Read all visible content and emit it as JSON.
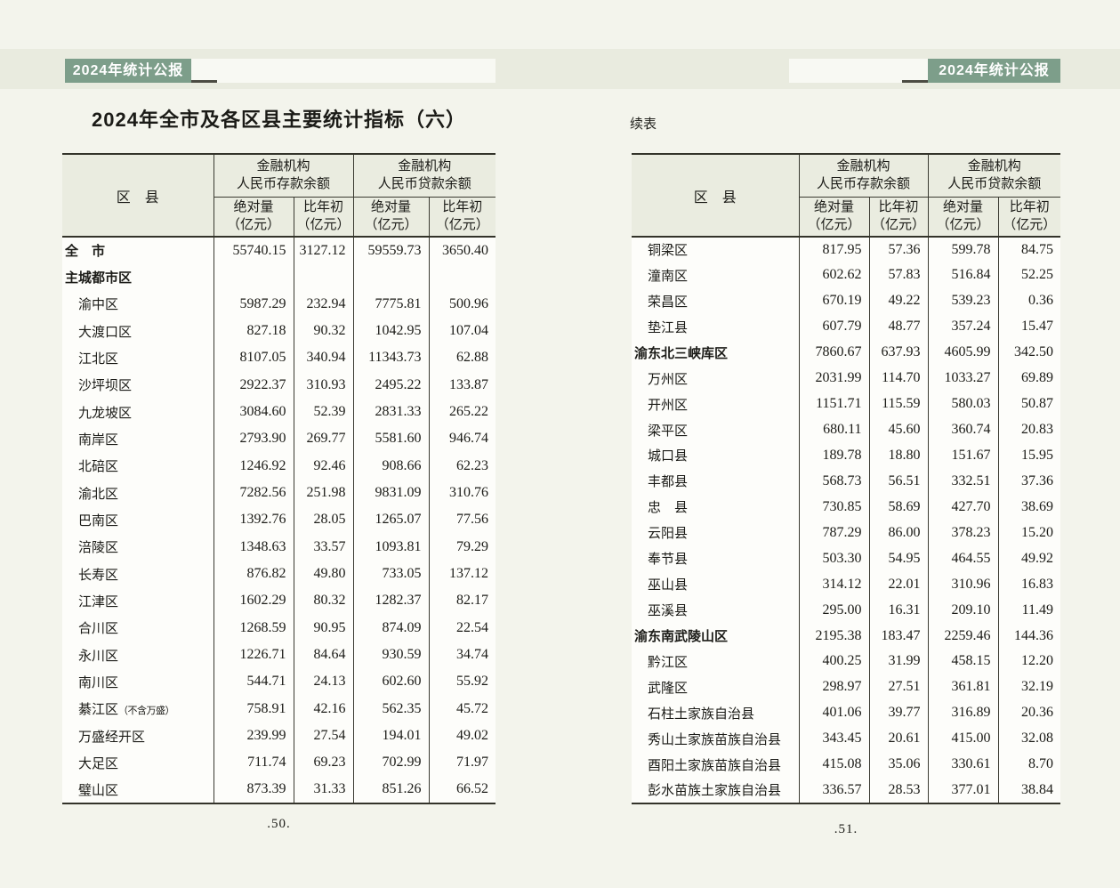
{
  "colors": {
    "badge_green": "#7d9e8a",
    "band_tint": "#e9ebdf",
    "table_header_tint": "#eaece0"
  },
  "left_page": {
    "badge": "2024年统计公报",
    "title": "2024年全市及各区县主要统计指标（六）",
    "page_number": ".50.",
    "table": {
      "header": {
        "region_col": "区　县",
        "deposit_group": "金融机构\n人民币存款余额",
        "loan_group": "金融机构\n人民币贷款余额",
        "sub_abs": "绝对量\n（亿元）",
        "sub_chg": "比年初\n（亿元）"
      },
      "rows": [
        {
          "name": "全　市",
          "bold": true,
          "indent": false,
          "values": [
            "55740.15",
            "3127.12",
            "59559.73",
            "3650.40"
          ]
        },
        {
          "name": "主城都市区",
          "bold": true,
          "indent": false,
          "values": [
            "",
            "",
            "",
            ""
          ]
        },
        {
          "name": "渝中区",
          "indent": true,
          "values": [
            "5987.29",
            "232.94",
            "7775.81",
            "500.96"
          ]
        },
        {
          "name": "大渡口区",
          "indent": true,
          "values": [
            "827.18",
            "90.32",
            "1042.95",
            "107.04"
          ]
        },
        {
          "name": "江北区",
          "indent": true,
          "values": [
            "8107.05",
            "340.94",
            "11343.73",
            "62.88"
          ]
        },
        {
          "name": "沙坪坝区",
          "indent": true,
          "values": [
            "2922.37",
            "310.93",
            "2495.22",
            "133.87"
          ]
        },
        {
          "name": "九龙坡区",
          "indent": true,
          "values": [
            "3084.60",
            "52.39",
            "2831.33",
            "265.22"
          ]
        },
        {
          "name": "南岸区",
          "indent": true,
          "values": [
            "2793.90",
            "269.77",
            "5581.60",
            "946.74"
          ]
        },
        {
          "name": "北碚区",
          "indent": true,
          "values": [
            "1246.92",
            "92.46",
            "908.66",
            "62.23"
          ]
        },
        {
          "name": "渝北区",
          "indent": true,
          "values": [
            "7282.56",
            "251.98",
            "9831.09",
            "310.76"
          ]
        },
        {
          "name": "巴南区",
          "indent": true,
          "values": [
            "1392.76",
            "28.05",
            "1265.07",
            "77.56"
          ]
        },
        {
          "name": "涪陵区",
          "indent": true,
          "values": [
            "1348.63",
            "33.57",
            "1093.81",
            "79.29"
          ]
        },
        {
          "name": "长寿区",
          "indent": true,
          "values": [
            "876.82",
            "49.80",
            "733.05",
            "137.12"
          ]
        },
        {
          "name": "江津区",
          "indent": true,
          "values": [
            "1602.29",
            "80.32",
            "1282.37",
            "82.17"
          ]
        },
        {
          "name": "合川区",
          "indent": true,
          "values": [
            "1268.59",
            "90.95",
            "874.09",
            "22.54"
          ]
        },
        {
          "name": "永川区",
          "indent": true,
          "values": [
            "1226.71",
            "84.64",
            "930.59",
            "34.74"
          ]
        },
        {
          "name": "南川区",
          "indent": true,
          "values": [
            "544.71",
            "24.13",
            "602.60",
            "55.92"
          ]
        },
        {
          "name": "綦江区",
          "note": "（不含万盛）",
          "indent": true,
          "values": [
            "758.91",
            "42.16",
            "562.35",
            "45.72"
          ]
        },
        {
          "name": "万盛经开区",
          "indent": true,
          "values": [
            "239.99",
            "27.54",
            "194.01",
            "49.02"
          ]
        },
        {
          "name": "大足区",
          "indent": true,
          "values": [
            "711.74",
            "69.23",
            "702.99",
            "71.97"
          ]
        },
        {
          "name": "璧山区",
          "indent": true,
          "values": [
            "873.39",
            "31.33",
            "851.26",
            "66.52"
          ]
        }
      ]
    }
  },
  "right_page": {
    "badge": "2024年统计公报",
    "continued_label": "续表",
    "page_number": ".51.",
    "table": {
      "header": {
        "region_col": "区　县",
        "deposit_group": "金融机构\n人民币存款余额",
        "loan_group": "金融机构\n人民币贷款余额",
        "sub_abs": "绝对量\n（亿元）",
        "sub_chg": "比年初\n（亿元）"
      },
      "rows": [
        {
          "name": "铜梁区",
          "indent": true,
          "values": [
            "817.95",
            "57.36",
            "599.78",
            "84.75"
          ]
        },
        {
          "name": "潼南区",
          "indent": true,
          "values": [
            "602.62",
            "57.83",
            "516.84",
            "52.25"
          ]
        },
        {
          "name": "荣昌区",
          "indent": true,
          "values": [
            "670.19",
            "49.22",
            "539.23",
            "0.36"
          ]
        },
        {
          "name": "垫江县",
          "indent": true,
          "values": [
            "607.79",
            "48.77",
            "357.24",
            "15.47"
          ]
        },
        {
          "name": "渝东北三峡库区",
          "bold": true,
          "indent": false,
          "values": [
            "7860.67",
            "637.93",
            "4605.99",
            "342.50"
          ]
        },
        {
          "name": "万州区",
          "indent": true,
          "values": [
            "2031.99",
            "114.70",
            "1033.27",
            "69.89"
          ]
        },
        {
          "name": "开州区",
          "indent": true,
          "values": [
            "1151.71",
            "115.59",
            "580.03",
            "50.87"
          ]
        },
        {
          "name": "梁平区",
          "indent": true,
          "values": [
            "680.11",
            "45.60",
            "360.74",
            "20.83"
          ]
        },
        {
          "name": "城口县",
          "indent": true,
          "values": [
            "189.78",
            "18.80",
            "151.67",
            "15.95"
          ]
        },
        {
          "name": "丰都县",
          "indent": true,
          "values": [
            "568.73",
            "56.51",
            "332.51",
            "37.36"
          ]
        },
        {
          "name": "忠　县",
          "indent": true,
          "values": [
            "730.85",
            "58.69",
            "427.70",
            "38.69"
          ]
        },
        {
          "name": "云阳县",
          "indent": true,
          "values": [
            "787.29",
            "86.00",
            "378.23",
            "15.20"
          ]
        },
        {
          "name": "奉节县",
          "indent": true,
          "values": [
            "503.30",
            "54.95",
            "464.55",
            "49.92"
          ]
        },
        {
          "name": "巫山县",
          "indent": true,
          "values": [
            "314.12",
            "22.01",
            "310.96",
            "16.83"
          ]
        },
        {
          "name": "巫溪县",
          "indent": true,
          "values": [
            "295.00",
            "16.31",
            "209.10",
            "11.49"
          ]
        },
        {
          "name": "渝东南武陵山区",
          "bold": true,
          "indent": false,
          "values": [
            "2195.38",
            "183.47",
            "2259.46",
            "144.36"
          ]
        },
        {
          "name": "黔江区",
          "indent": true,
          "values": [
            "400.25",
            "31.99",
            "458.15",
            "12.20"
          ]
        },
        {
          "name": "武隆区",
          "indent": true,
          "values": [
            "298.97",
            "27.51",
            "361.81",
            "32.19"
          ]
        },
        {
          "name": "石柱土家族自治县",
          "indent": true,
          "values": [
            "401.06",
            "39.77",
            "316.89",
            "20.36"
          ]
        },
        {
          "name": "秀山土家族苗族自治县",
          "indent": true,
          "values": [
            "343.45",
            "20.61",
            "415.00",
            "32.08"
          ]
        },
        {
          "name": "酉阳土家族苗族自治县",
          "indent": true,
          "values": [
            "415.08",
            "35.06",
            "330.61",
            "8.70"
          ]
        },
        {
          "name": "彭水苗族土家族自治县",
          "indent": true,
          "values": [
            "336.57",
            "28.53",
            "377.01",
            "38.84"
          ]
        }
      ]
    }
  }
}
